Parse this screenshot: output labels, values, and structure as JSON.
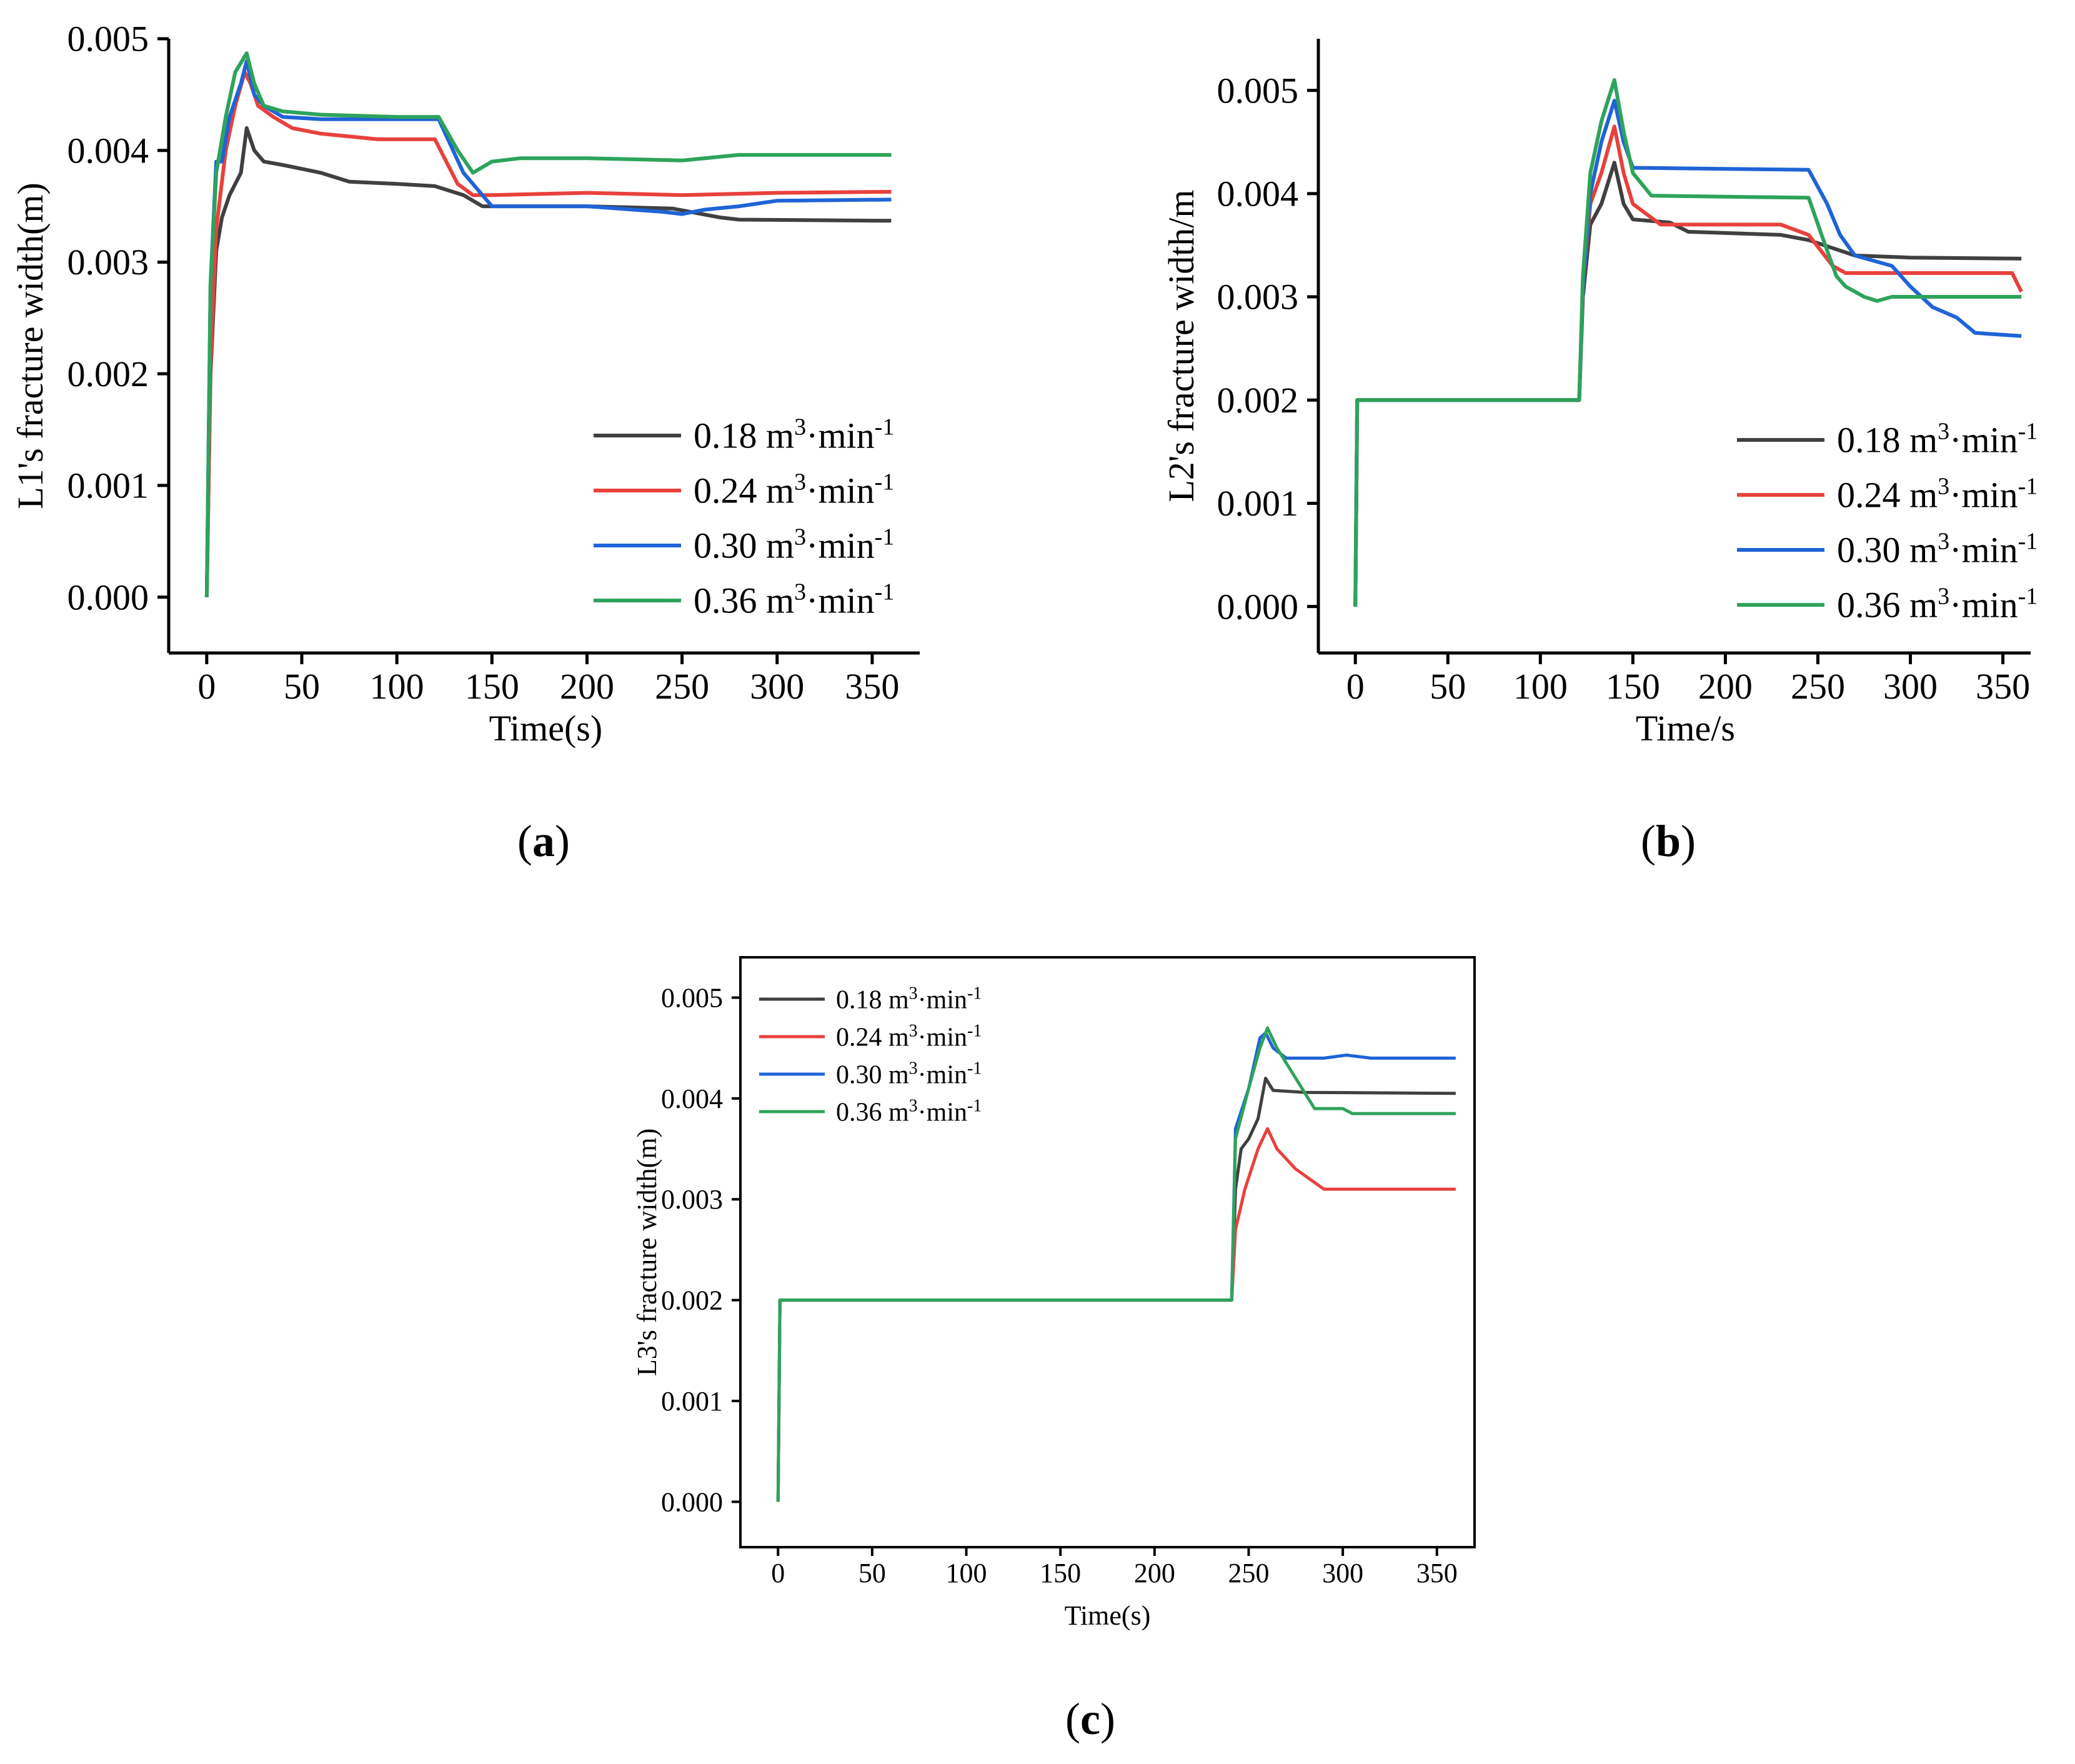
{
  "panel_labels": [
    "a",
    "b",
    "c"
  ],
  "chart_data": [
    {
      "type": "line",
      "panel": "a",
      "xlabel": "Time(s)",
      "ylabel": "L1's fracture width(m)",
      "xlim": [
        -20,
        375
      ],
      "ylim": [
        -0.0005,
        0.005
      ],
      "xticks": [
        0,
        50,
        100,
        150,
        200,
        250,
        300,
        350
      ],
      "yticks": [
        0.0,
        0.001,
        0.002,
        0.003,
        0.004,
        0.005
      ],
      "ytick_labels": [
        "0.000",
        "0.001",
        "0.002",
        "0.003",
        "0.004",
        "0.005"
      ],
      "legend_position": "bottom-right",
      "series": [
        {
          "name": "0.18 m3·min-1",
          "label_base": "0.18 m",
          "color": "#404040",
          "points": [
            [
              0,
              0.0
            ],
            [
              2,
              0.002
            ],
            [
              5,
              0.0031
            ],
            [
              8,
              0.0034
            ],
            [
              12,
              0.0036
            ],
            [
              18,
              0.0038
            ],
            [
              21,
              0.0042
            ],
            [
              25,
              0.004
            ],
            [
              30,
              0.0039
            ],
            [
              40,
              0.00387
            ],
            [
              60,
              0.0038
            ],
            [
              75,
              0.00372
            ],
            [
              100,
              0.0037
            ],
            [
              120,
              0.00368
            ],
            [
              135,
              0.0036
            ],
            [
              145,
              0.0035
            ],
            [
              200,
              0.0035
            ],
            [
              245,
              0.00348
            ],
            [
              270,
              0.0034
            ],
            [
              280,
              0.00338
            ],
            [
              360,
              0.00337
            ]
          ]
        },
        {
          "name": "0.24 m3·min-1",
          "label_base": "0.24 m",
          "color": "#e8413c",
          "points": [
            [
              0,
              0.0
            ],
            [
              2,
              0.0021
            ],
            [
              5,
              0.0033
            ],
            [
              10,
              0.004
            ],
            [
              15,
              0.0044
            ],
            [
              20,
              0.0047
            ],
            [
              23,
              0.0046
            ],
            [
              27,
              0.0044
            ],
            [
              35,
              0.0043
            ],
            [
              45,
              0.0042
            ],
            [
              60,
              0.00415
            ],
            [
              90,
              0.0041
            ],
            [
              120,
              0.0041
            ],
            [
              132,
              0.0037
            ],
            [
              140,
              0.0036
            ],
            [
              150,
              0.0036
            ],
            [
              200,
              0.00362
            ],
            [
              250,
              0.0036
            ],
            [
              300,
              0.00362
            ],
            [
              360,
              0.00363
            ]
          ]
        },
        {
          "name": "0.30 m3·min-1",
          "label_base": "0.30 m",
          "color": "#1f64d6",
          "points": [
            [
              0,
              0.0
            ],
            [
              2,
              0.0028
            ],
            [
              5,
              0.0039
            ],
            [
              8,
              0.0039
            ],
            [
              12,
              0.0043
            ],
            [
              18,
              0.0046
            ],
            [
              21,
              0.0048
            ],
            [
              25,
              0.0045
            ],
            [
              30,
              0.0044
            ],
            [
              40,
              0.0043
            ],
            [
              60,
              0.00428
            ],
            [
              100,
              0.00428
            ],
            [
              122,
              0.00428
            ],
            [
              135,
              0.0038
            ],
            [
              150,
              0.0035
            ],
            [
              200,
              0.0035
            ],
            [
              240,
              0.00345
            ],
            [
              250,
              0.00343
            ],
            [
              262,
              0.00347
            ],
            [
              280,
              0.0035
            ],
            [
              300,
              0.00355
            ],
            [
              360,
              0.00356
            ]
          ]
        },
        {
          "name": "0.36 m3·min-1",
          "label_base": "0.36 m",
          "color": "#2ea35b",
          "points": [
            [
              0,
              0.0
            ],
            [
              2,
              0.0028
            ],
            [
              5,
              0.0038
            ],
            [
              10,
              0.0043
            ],
            [
              15,
              0.0047
            ],
            [
              21,
              0.00487
            ],
            [
              25,
              0.0046
            ],
            [
              30,
              0.0044
            ],
            [
              40,
              0.00435
            ],
            [
              60,
              0.00432
            ],
            [
              100,
              0.0043
            ],
            [
              122,
              0.0043
            ],
            [
              132,
              0.004
            ],
            [
              140,
              0.0038
            ],
            [
              150,
              0.0039
            ],
            [
              165,
              0.00393
            ],
            [
              200,
              0.00393
            ],
            [
              250,
              0.00391
            ],
            [
              280,
              0.00396
            ],
            [
              360,
              0.00396
            ]
          ]
        }
      ]
    },
    {
      "type": "line",
      "panel": "b",
      "xlabel": "Time/s",
      "ylabel": "L2's fracture width/m",
      "xlim": [
        -20,
        365
      ],
      "ylim": [
        -0.00045,
        0.0055
      ],
      "xticks": [
        0,
        50,
        100,
        150,
        200,
        250,
        300,
        350
      ],
      "yticks": [
        0.0,
        0.001,
        0.002,
        0.003,
        0.004,
        0.005
      ],
      "ytick_labels": [
        "0.000",
        "0.001",
        "0.002",
        "0.003",
        "0.004",
        "0.005"
      ],
      "legend_position": "bottom-right",
      "series": [
        {
          "name": "0.18 m3·min-1",
          "label_base": "0.18 m",
          "color": "#404040",
          "points": [
            [
              0,
              0.0
            ],
            [
              1,
              0.002
            ],
            [
              121,
              0.002
            ],
            [
              123,
              0.003
            ],
            [
              127,
              0.0037
            ],
            [
              133,
              0.0039
            ],
            [
              140,
              0.0043
            ],
            [
              145,
              0.0039
            ],
            [
              150,
              0.00375
            ],
            [
              170,
              0.00372
            ],
            [
              180,
              0.00363
            ],
            [
              230,
              0.0036
            ],
            [
              245,
              0.00355
            ],
            [
              270,
              0.0034
            ],
            [
              300,
              0.00338
            ],
            [
              360,
              0.00337
            ]
          ]
        },
        {
          "name": "0.24 m3·min-1",
          "label_base": "0.24 m",
          "color": "#e8413c",
          "points": [
            [
              0,
              0.0
            ],
            [
              1,
              0.002
            ],
            [
              121,
              0.002
            ],
            [
              123,
              0.0031
            ],
            [
              127,
              0.0039
            ],
            [
              133,
              0.0042
            ],
            [
              140,
              0.00465
            ],
            [
              145,
              0.0042
            ],
            [
              150,
              0.0039
            ],
            [
              165,
              0.0037
            ],
            [
              230,
              0.0037
            ],
            [
              245,
              0.0036
            ],
            [
              258,
              0.0033
            ],
            [
              265,
              0.00323
            ],
            [
              280,
              0.00323
            ],
            [
              355,
              0.00323
            ],
            [
              360,
              0.00305
            ]
          ]
        },
        {
          "name": "0.30 m3·min-1",
          "label_base": "0.30 m",
          "color": "#1f64d6",
          "points": [
            [
              0,
              0.0
            ],
            [
              1,
              0.002
            ],
            [
              121,
              0.002
            ],
            [
              123,
              0.0031
            ],
            [
              127,
              0.004
            ],
            [
              133,
              0.0045
            ],
            [
              140,
              0.0049
            ],
            [
              145,
              0.0045
            ],
            [
              150,
              0.00425
            ],
            [
              200,
              0.00424
            ],
            [
              245,
              0.00423
            ],
            [
              255,
              0.0039
            ],
            [
              262,
              0.0036
            ],
            [
              270,
              0.0034
            ],
            [
              290,
              0.0033
            ],
            [
              300,
              0.0031
            ],
            [
              312,
              0.0029
            ],
            [
              325,
              0.0028
            ],
            [
              335,
              0.00265
            ],
            [
              360,
              0.00262
            ]
          ]
        },
        {
          "name": "0.36 m3·min-1",
          "label_base": "0.36 m",
          "color": "#2ea35b",
          "points": [
            [
              0,
              0.0
            ],
            [
              1,
              0.002
            ],
            [
              121,
              0.002
            ],
            [
              123,
              0.0032
            ],
            [
              127,
              0.0042
            ],
            [
              133,
              0.0047
            ],
            [
              140,
              0.0051
            ],
            [
              145,
              0.0046
            ],
            [
              150,
              0.0042
            ],
            [
              160,
              0.00398
            ],
            [
              200,
              0.00397
            ],
            [
              245,
              0.00396
            ],
            [
              252,
              0.0036
            ],
            [
              260,
              0.0032
            ],
            [
              265,
              0.0031
            ],
            [
              275,
              0.003
            ],
            [
              282,
              0.00296
            ],
            [
              290,
              0.003
            ],
            [
              360,
              0.003
            ]
          ]
        }
      ]
    },
    {
      "type": "line",
      "panel": "c",
      "xlabel": "Time(s)",
      "ylabel": "L3's fracture width(m)",
      "xlim": [
        -20,
        370
      ],
      "ylim": [
        -0.00045,
        0.0054
      ],
      "xticks": [
        0,
        50,
        100,
        150,
        200,
        250,
        300,
        350
      ],
      "yticks": [
        0.0,
        0.001,
        0.002,
        0.003,
        0.004,
        0.005
      ],
      "ytick_labels": [
        "0.000",
        "0.001",
        "0.002",
        "0.003",
        "0.004",
        "0.005"
      ],
      "legend_position": "top-left",
      "series": [
        {
          "name": "0.18 m3·min-1",
          "label_base": "0.18 m",
          "color": "#404040",
          "points": [
            [
              0,
              0.0
            ],
            [
              1,
              0.002
            ],
            [
              241,
              0.002
            ],
            [
              243,
              0.0031
            ],
            [
              246,
              0.0035
            ],
            [
              250,
              0.0036
            ],
            [
              255,
              0.0038
            ],
            [
              259,
              0.0042
            ],
            [
              263,
              0.00408
            ],
            [
              280,
              0.00406
            ],
            [
              360,
              0.00405
            ]
          ]
        },
        {
          "name": "0.24 m3·min-1",
          "label_base": "0.24 m",
          "color": "#e8413c",
          "points": [
            [
              0,
              0.0
            ],
            [
              1,
              0.002
            ],
            [
              241,
              0.002
            ],
            [
              243,
              0.0027
            ],
            [
              248,
              0.0031
            ],
            [
              255,
              0.0035
            ],
            [
              260,
              0.0037
            ],
            [
              265,
              0.0035
            ],
            [
              275,
              0.0033
            ],
            [
              290,
              0.0031
            ],
            [
              360,
              0.0031
            ]
          ]
        },
        {
          "name": "0.30 m3·min-1",
          "label_base": "0.30 m",
          "color": "#1f64d6",
          "points": [
            [
              0,
              0.0
            ],
            [
              1,
              0.002
            ],
            [
              241,
              0.002
            ],
            [
              243,
              0.0037
            ],
            [
              250,
              0.0041
            ],
            [
              256,
              0.0046
            ],
            [
              259,
              0.00465
            ],
            [
              263,
              0.0045
            ],
            [
              270,
              0.0044
            ],
            [
              290,
              0.0044
            ],
            [
              302,
              0.00443
            ],
            [
              315,
              0.0044
            ],
            [
              360,
              0.0044
            ]
          ]
        },
        {
          "name": "0.36 m3·min-1",
          "label_base": "0.36 m",
          "color": "#2ea35b",
          "points": [
            [
              0,
              0.0
            ],
            [
              1,
              0.002
            ],
            [
              241,
              0.002
            ],
            [
              243,
              0.0036
            ],
            [
              250,
              0.0041
            ],
            [
              256,
              0.0045
            ],
            [
              260,
              0.0047
            ],
            [
              265,
              0.0045
            ],
            [
              275,
              0.0042
            ],
            [
              285,
              0.0039
            ],
            [
              300,
              0.0039
            ],
            [
              305,
              0.00385
            ],
            [
              360,
              0.00385
            ]
          ]
        }
      ]
    }
  ]
}
